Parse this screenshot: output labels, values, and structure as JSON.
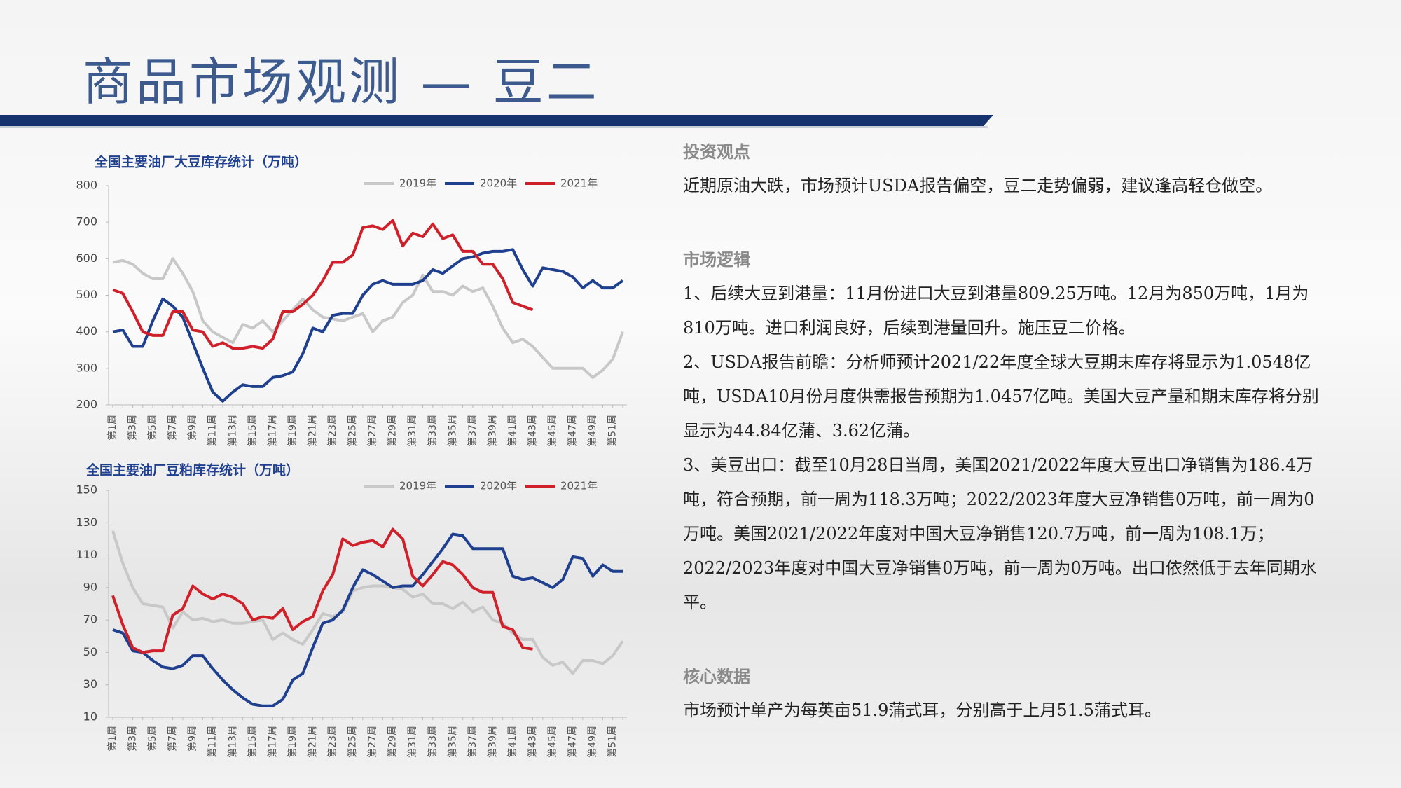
{
  "title": "商品市场观测 — 豆二",
  "chart_data": [
    {
      "type": "line",
      "title": "全国主要油厂大豆库存统计（万吨）",
      "categories": [
        "第1周",
        null,
        "第3周",
        null,
        "第5周",
        null,
        "第7周",
        null,
        "第9周",
        null,
        "第11周",
        null,
        "第13周",
        null,
        "第15周",
        null,
        "第17周",
        null,
        "第19周",
        null,
        "第21周",
        null,
        "第23周",
        null,
        "第25周",
        null,
        "第27周",
        null,
        "第29周",
        null,
        "第31周",
        null,
        "第33周",
        null,
        "第35周",
        null,
        "第37周",
        null,
        "第39周",
        null,
        "第41周",
        null,
        "第43周",
        null,
        "第45周",
        null,
        "第47周",
        null,
        "第49周",
        null,
        "第51周",
        null
      ],
      "ylim": [
        200,
        800
      ],
      "yticks": [
        200,
        300,
        400,
        500,
        600,
        700,
        800
      ],
      "grid": false,
      "legend": "top",
      "series": [
        {
          "name": "2019年",
          "color": "#c8c8c8",
          "values": [
            590,
            595,
            585,
            560,
            545,
            545,
            600,
            560,
            510,
            430,
            400,
            385,
            370,
            420,
            410,
            430,
            400,
            430,
            460,
            490,
            460,
            440,
            435,
            430,
            440,
            450,
            400,
            430,
            440,
            480,
            500,
            555,
            510,
            510,
            500,
            525,
            510,
            520,
            470,
            410,
            370,
            380,
            360,
            330,
            300,
            300,
            300,
            300,
            275,
            295,
            325,
            400
          ]
        },
        {
          "name": "2020年",
          "color": "#1f3f8f",
          "values": [
            400,
            405,
            360,
            360,
            430,
            490,
            470,
            440,
            370,
            300,
            235,
            210,
            235,
            255,
            250,
            250,
            275,
            280,
            290,
            340,
            410,
            400,
            445,
            450,
            450,
            500,
            530,
            540,
            530,
            530,
            530,
            540,
            570,
            560,
            580,
            600,
            605,
            615,
            620,
            620,
            625,
            570,
            525,
            575,
            570,
            565,
            550,
            520,
            540,
            520,
            520,
            540
          ]
        },
        {
          "name": "2021年",
          "color": "#d0202a",
          "values": [
            515,
            505,
            455,
            400,
            390,
            390,
            455,
            455,
            405,
            400,
            360,
            370,
            355,
            355,
            360,
            355,
            380,
            455,
            455,
            475,
            500,
            540,
            590,
            590,
            610,
            685,
            690,
            680,
            705,
            635,
            670,
            660,
            695,
            655,
            665,
            620,
            620,
            585,
            585,
            545,
            480,
            470,
            460,
            null,
            null,
            null,
            null,
            null,
            null,
            null,
            null,
            null
          ]
        }
      ]
    },
    {
      "type": "line",
      "title": "全国主要油厂豆粕库存统计（万吨）",
      "categories": [
        "第1周",
        null,
        "第3周",
        null,
        "第5周",
        null,
        "第7周",
        null,
        "第9周",
        null,
        "第11周",
        null,
        "第13周",
        null,
        "第15周",
        null,
        "第17周",
        null,
        "第19周",
        null,
        "第21周",
        null,
        "第23周",
        null,
        "第25周",
        null,
        "第27周",
        null,
        "第29周",
        null,
        "第31周",
        null,
        "第33周",
        null,
        "第35周",
        null,
        "第37周",
        null,
        "第39周",
        null,
        "第41周",
        null,
        "第43周",
        null,
        "第45周",
        null,
        "第47周",
        null,
        "第49周",
        null,
        "第51周",
        null
      ],
      "ylim": [
        10,
        150
      ],
      "yticks": [
        10,
        30,
        50,
        70,
        90,
        110,
        130,
        150
      ],
      "grid": false,
      "legend": "top",
      "series": [
        {
          "name": "2019年",
          "color": "#c8c8c8",
          "values": [
            125,
            105,
            90,
            80,
            79,
            78,
            65,
            75,
            70,
            71,
            69,
            70,
            68,
            68,
            69,
            70,
            58,
            62,
            58,
            55,
            64,
            74,
            72,
            75,
            88,
            90,
            91,
            91,
            90,
            89,
            84,
            86,
            80,
            80,
            77,
            81,
            75,
            78,
            70,
            68,
            62,
            58,
            58,
            47,
            42,
            44,
            37,
            45,
            45,
            43,
            48,
            57
          ]
        },
        {
          "name": "2020年",
          "color": "#1f3f8f",
          "values": [
            64,
            62,
            51,
            50,
            45,
            41,
            40,
            42,
            48,
            48,
            40,
            33,
            27,
            22,
            18,
            17,
            17,
            21,
            33,
            37,
            53,
            68,
            70,
            76,
            90,
            101,
            98,
            94,
            90,
            91,
            91,
            98,
            106,
            114,
            123,
            122,
            114,
            114,
            114,
            114,
            97,
            95,
            96,
            93,
            90,
            95,
            109,
            108,
            97,
            104,
            100,
            100
          ]
        },
        {
          "name": "2021年",
          "color": "#d0202a",
          "values": [
            85,
            67,
            53,
            50,
            51,
            51,
            73,
            77,
            91,
            86,
            83,
            86,
            84,
            80,
            70,
            72,
            71,
            77,
            64,
            69,
            72,
            88,
            98,
            120,
            116,
            118,
            119,
            115,
            126,
            120,
            97,
            91,
            98,
            106,
            104,
            98,
            90,
            87,
            87,
            66,
            64,
            53,
            52,
            null,
            null,
            null,
            null,
            null,
            null,
            null,
            null,
            null
          ]
        }
      ]
    }
  ],
  "sections": [
    {
      "heading": "投资观点",
      "paragraphs": [
        "近期原油大跌，市场预计USDA报告偏空，豆二走势偏弱，建议逢高轻仓做空。"
      ]
    },
    {
      "heading": "市场逻辑",
      "paragraphs": [
        "1、后续大豆到港量：11月份进口大豆到港量809.25万吨。12月为850万吨，1月为810万吨。进口利润良好，后续到港量回升。施压豆二价格。",
        "2、USDA报告前瞻：分析师预计2021/22年度全球大豆期末库存将显示为1.0548亿吨，USDA10月份月度供需报告预期为1.0457亿吨。美国大豆产量和期末库存将分别显示为44.84亿蒲、3.62亿蒲。",
        "3、美豆出口：截至10月28日当周，美国2021/2022年度大豆出口净销售为186.4万吨，符合预期，前一周为118.3万吨；2022/2023年度大豆净销售0万吨，前一周为0万吨。美国2021/2022年度对中国大豆净销售120.7万吨，前一周为108.1万；2022/2023年度对中国大豆净销售0万吨，前一周为0万吨。出口依然低于去年同期水平。"
      ]
    },
    {
      "heading": "核心数据",
      "paragraphs": [
        "市场预计单产为每英亩51.9蒲式耳，分别高于上月51.5蒲式耳。"
      ]
    }
  ]
}
